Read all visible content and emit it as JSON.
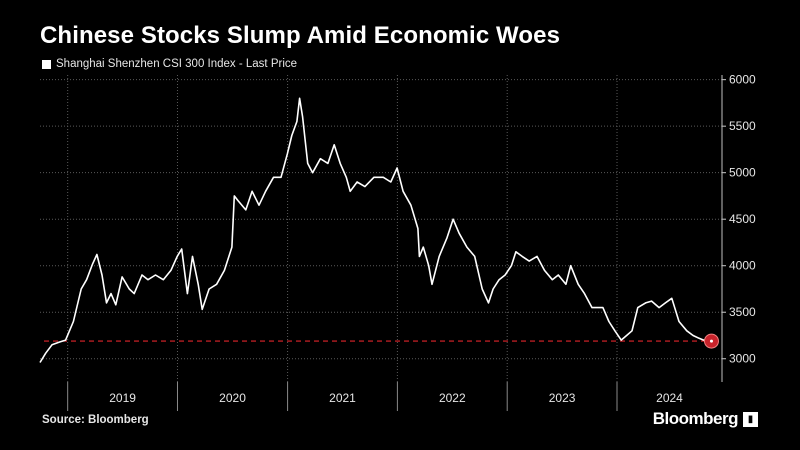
{
  "title": "Chinese Stocks Slump Amid Economic Woes",
  "source": "Source: Bloomberg",
  "brand": "Bloomberg",
  "brand_icon": "chart-icon",
  "colors": {
    "background": "#000000",
    "line": "#ffffff",
    "grid": "#5a5a5a",
    "reference": "#e0252b",
    "marker": "#c8232b"
  },
  "chart_data": {
    "type": "line",
    "legend": "Shanghai Shenzhen CSI 300 Index - Last Price",
    "legend_position": "top-left",
    "grid": true,
    "ylim": [
      2750,
      6050
    ],
    "yticks": [
      3000,
      3500,
      4000,
      4500,
      5000,
      5500,
      6000
    ],
    "ytick_labels": [
      "3000",
      "3500",
      "4000",
      "4500",
      "5000",
      "5500",
      "6000"
    ],
    "xlim": [
      "2018-10-01",
      "2024-12-15"
    ],
    "year_labels": [
      "2019",
      "2020",
      "2021",
      "2022",
      "2023",
      "2024"
    ],
    "year_starts": [
      "2019-01-01",
      "2020-01-01",
      "2021-01-01",
      "2022-01-01",
      "2023-01-01",
      "2024-01-01"
    ],
    "reference_line": {
      "value": 3190,
      "style": "dashed"
    },
    "last_point": {
      "x": "2024-11-10",
      "y": 3190
    },
    "series": [
      {
        "x": [
          "2018-10-01",
          "2018-10-20",
          "2018-11-10",
          "2018-12-05",
          "2018-12-25",
          "2019-01-20",
          "2019-02-15",
          "2019-03-05",
          "2019-03-25",
          "2019-04-08",
          "2019-04-25",
          "2019-05-10",
          "2019-05-25",
          "2019-06-10",
          "2019-07-01",
          "2019-07-25",
          "2019-08-10",
          "2019-09-05",
          "2019-09-25",
          "2019-10-20",
          "2019-11-15",
          "2019-12-10",
          "2019-12-31",
          "2020-01-15",
          "2020-02-03",
          "2020-02-20",
          "2020-03-10",
          "2020-03-23",
          "2020-04-15",
          "2020-05-10",
          "2020-06-05",
          "2020-06-30",
          "2020-07-08",
          "2020-07-20",
          "2020-08-15",
          "2020-09-05",
          "2020-09-28",
          "2020-10-20",
          "2020-11-15",
          "2020-12-10",
          "2020-12-31",
          "2021-01-15",
          "2021-02-01",
          "2021-02-10",
          "2021-02-20",
          "2021-03-09",
          "2021-03-25",
          "2021-04-20",
          "2021-05-15",
          "2021-06-05",
          "2021-06-25",
          "2021-07-15",
          "2021-07-28",
          "2021-08-20",
          "2021-09-15",
          "2021-10-15",
          "2021-11-15",
          "2021-12-10",
          "2021-12-31",
          "2022-01-20",
          "2022-02-15",
          "2022-03-10",
          "2022-03-15",
          "2022-03-28",
          "2022-04-15",
          "2022-04-26",
          "2022-05-20",
          "2022-06-15",
          "2022-07-05",
          "2022-07-25",
          "2022-08-20",
          "2022-09-15",
          "2022-10-10",
          "2022-10-31",
          "2022-11-15",
          "2022-12-05",
          "2022-12-25",
          "2023-01-15",
          "2023-01-30",
          "2023-02-20",
          "2023-03-15",
          "2023-04-10",
          "2023-05-05",
          "2023-05-31",
          "2023-06-20",
          "2023-07-15",
          "2023-07-31",
          "2023-08-25",
          "2023-09-15",
          "2023-10-10",
          "2023-10-25",
          "2023-11-15",
          "2023-12-05",
          "2023-12-25",
          "2024-01-15",
          "2024-02-02",
          "2024-02-20",
          "2024-03-10",
          "2024-04-05",
          "2024-04-25",
          "2024-05-20",
          "2024-06-10",
          "2024-07-01",
          "2024-07-25",
          "2024-08-20",
          "2024-09-10",
          "2024-09-30",
          "2024-10-15",
          "2024-11-10"
        ],
        "y": [
          2960,
          3060,
          3150,
          3180,
          3200,
          3400,
          3750,
          3850,
          4020,
          4120,
          3900,
          3600,
          3700,
          3580,
          3880,
          3750,
          3700,
          3900,
          3850,
          3900,
          3850,
          3950,
          4100,
          4180,
          3700,
          4100,
          3800,
          3530,
          3750,
          3800,
          3950,
          4200,
          4750,
          4700,
          4600,
          4800,
          4650,
          4800,
          4950,
          4950,
          5200,
          5400,
          5550,
          5800,
          5600,
          5100,
          5000,
          5150,
          5100,
          5300,
          5100,
          4950,
          4800,
          4900,
          4850,
          4950,
          4950,
          4900,
          5050,
          4800,
          4650,
          4400,
          4100,
          4200,
          4000,
          3800,
          4100,
          4300,
          4500,
          4350,
          4200,
          4100,
          3750,
          3600,
          3750,
          3850,
          3900,
          4000,
          4150,
          4100,
          4050,
          4100,
          3950,
          3850,
          3900,
          3800,
          4000,
          3800,
          3700,
          3550,
          3550,
          3550,
          3400,
          3300,
          3200,
          3250,
          3300,
          3550,
          3600,
          3620,
          3550,
          3600,
          3650,
          3400,
          3300,
          3250,
          3220,
          3200,
          3190
        ]
      }
    ]
  }
}
